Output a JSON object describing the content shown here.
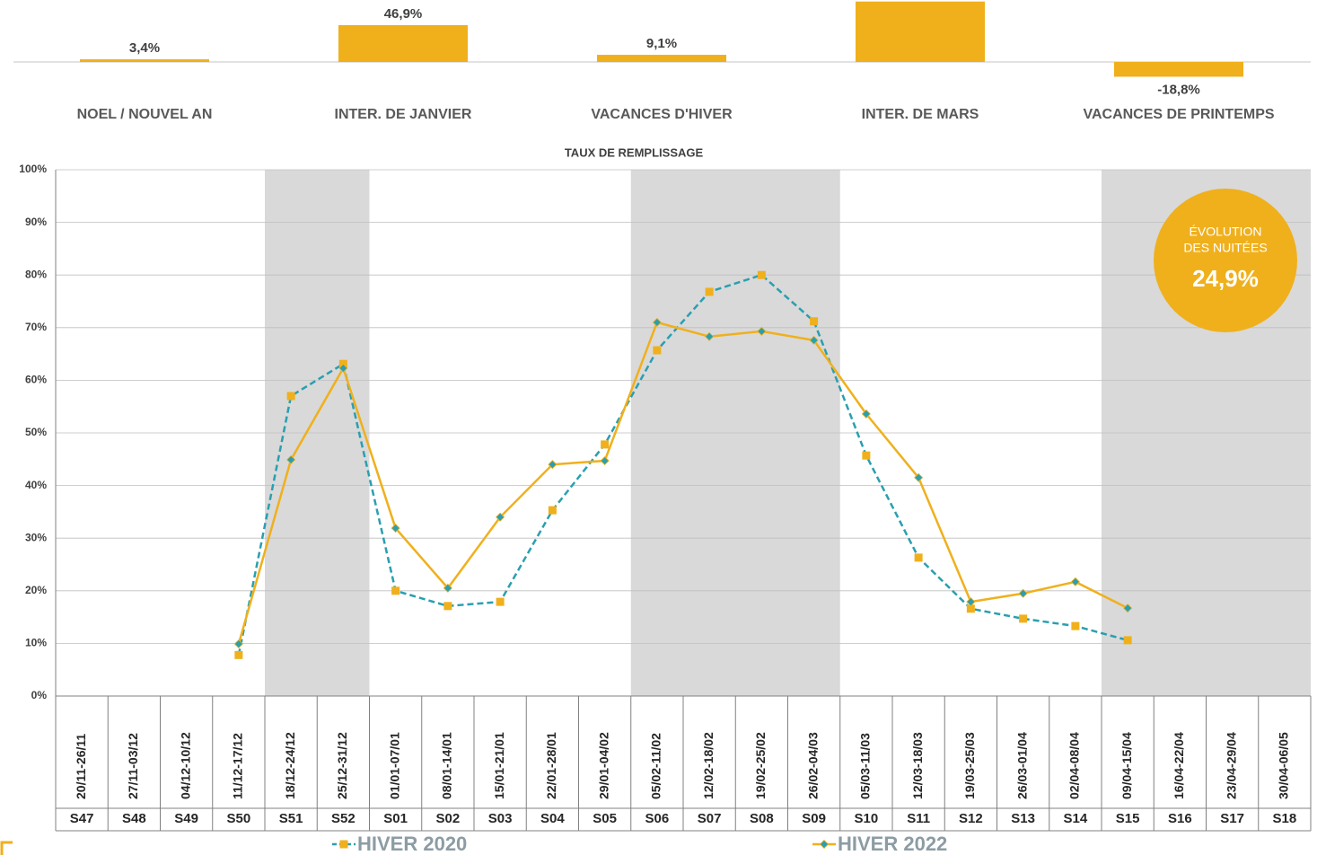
{
  "chart_data": [
    {
      "type": "bar",
      "categories": [
        "NOEL / NOUVEL AN",
        "INTER. DE JANVIER",
        "VACANCES D'HIVER",
        "INTER. DE MARS",
        "VACANCES DE PRINTEMPS"
      ],
      "values": [
        3.4,
        46.9,
        9.1,
        77,
        -18.8
      ],
      "value_labels": [
        "3,4%",
        "46,9%",
        "9,1%",
        null,
        "-18,8%"
      ],
      "color": "#f0b01c"
    },
    {
      "type": "line",
      "title": "TAUX DE REMPLISSAGE",
      "categories": [
        "20/11-26/11",
        "27/11-03/12",
        "04/12-10/12",
        "11/12-17/12",
        "18/12-24/12",
        "25/12-31/12",
        "01/01-07/01",
        "08/01-14/01",
        "15/01-21/01",
        "22/01-28/01",
        "29/01-04/02",
        "05/02-11/02",
        "12/02-18/02",
        "19/02-25/02",
        "26/02-04/03",
        "05/03-11/03",
        "12/03-18/03",
        "19/03-25/03",
        "26/03-01/04",
        "02/04-08/04",
        "09/04-15/04",
        "16/04-22/04",
        "23/04-29/04",
        "30/04-06/05"
      ],
      "weeks": [
        "S47",
        "S48",
        "S49",
        "S50",
        "S51",
        "S52",
        "S01",
        "S02",
        "S03",
        "S04",
        "S05",
        "S06",
        "S07",
        "S08",
        "S09",
        "S10",
        "S11",
        "S12",
        "S13",
        "S14",
        "S15",
        "S16",
        "S17",
        "S18"
      ],
      "ylim": [
        0,
        100
      ],
      "yticks": [
        {
          "value": 0,
          "label": "0%"
        },
        {
          "value": 10,
          "label": "10%"
        },
        {
          "value": 20,
          "label": "20%"
        },
        {
          "value": 30,
          "label": "30%"
        },
        {
          "value": 40,
          "label": "40%"
        },
        {
          "value": 50,
          "label": "50%"
        },
        {
          "value": 60,
          "label": "60%"
        },
        {
          "value": 70,
          "label": "70%"
        },
        {
          "value": 80,
          "label": "80%"
        },
        {
          "value": 90,
          "label": "90%"
        },
        {
          "value": 100,
          "label": "100%"
        }
      ],
      "grid": true,
      "series": [
        {
          "name": "HIVER 2020",
          "color": "#2a9fb0",
          "marker_color": "#f0b01c",
          "marker": "square",
          "dashed": true,
          "values": [
            null,
            null,
            null,
            7.8,
            57.0,
            63.1,
            20.0,
            17.1,
            17.9,
            35.3,
            47.8,
            65.7,
            76.8,
            80.0,
            71.2,
            45.7,
            26.3,
            16.6,
            14.7,
            13.3,
            10.6,
            null,
            null,
            null
          ]
        },
        {
          "name": "HIVER 2022",
          "color": "#f0b01c",
          "marker_color": "#2a9fb0",
          "marker": "diamond",
          "dashed": false,
          "values": [
            null,
            null,
            null,
            9.9,
            44.9,
            62.3,
            31.9,
            20.5,
            34.0,
            44.0,
            44.7,
            71.0,
            68.3,
            69.3,
            67.6,
            53.6,
            41.5,
            17.9,
            19.5,
            21.7,
            16.7,
            null,
            null,
            null
          ]
        }
      ],
      "annotation": {
        "lines": [
          "ÉVOLUTION",
          "DES NUITÉES"
        ],
        "value": "24,9%",
        "color": "#f0b01c"
      }
    }
  ]
}
